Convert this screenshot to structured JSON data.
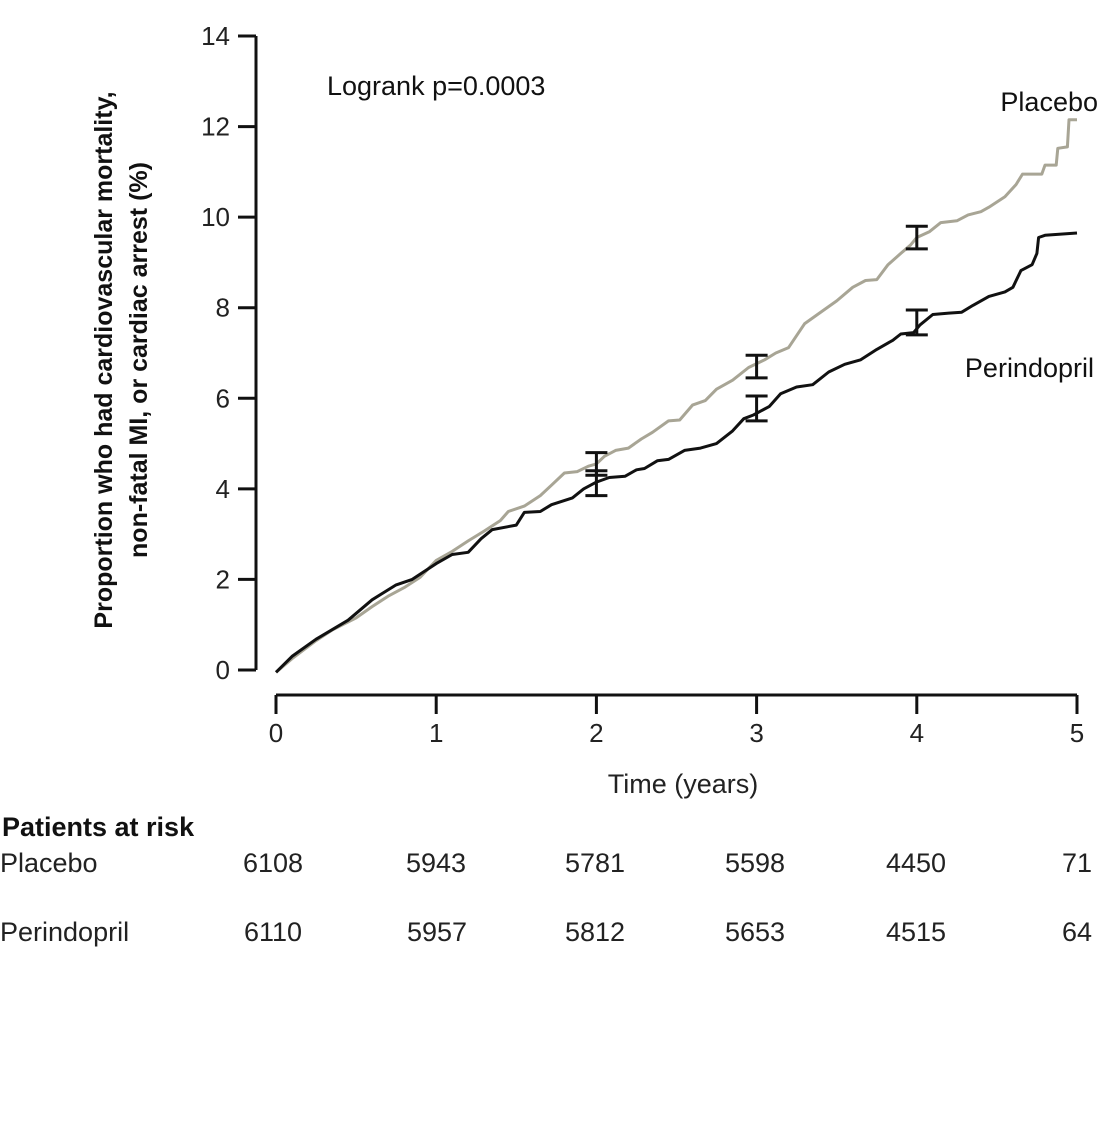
{
  "chart_data": {
    "type": "line",
    "subtype": "kaplan-meier-cumulative-incidence",
    "title": "",
    "xlabel": "Time (years)",
    "ylabel_lines": [
      "Proportion who had cardiovascular mortality,",
      "non-fatal MI, or cardiac arrest (%)"
    ],
    "xlim": [
      0,
      5
    ],
    "ylim": [
      0,
      14
    ],
    "xticks": [
      0,
      1,
      2,
      3,
      4,
      5
    ],
    "yticks": [
      0,
      2,
      4,
      6,
      8,
      10,
      12,
      14
    ],
    "grid": false,
    "annotation": "Logrank p=0.0003",
    "series": [
      {
        "name": "Placebo",
        "color": "#a8a595",
        "points": [
          [
            0,
            -0.05
          ],
          [
            0.1,
            0.25
          ],
          [
            0.25,
            0.65
          ],
          [
            0.35,
            0.88
          ],
          [
            0.5,
            1.15
          ],
          [
            0.6,
            1.4
          ],
          [
            0.7,
            1.63
          ],
          [
            0.8,
            1.82
          ],
          [
            0.9,
            2.05
          ],
          [
            1.0,
            2.42
          ],
          [
            1.1,
            2.62
          ],
          [
            1.2,
            2.85
          ],
          [
            1.3,
            3.07
          ],
          [
            1.4,
            3.3
          ],
          [
            1.45,
            3.5
          ],
          [
            1.55,
            3.62
          ],
          [
            1.65,
            3.85
          ],
          [
            1.72,
            4.08
          ],
          [
            1.8,
            4.35
          ],
          [
            1.88,
            4.38
          ],
          [
            1.95,
            4.5
          ],
          [
            2.0,
            4.55
          ],
          [
            2.05,
            4.72
          ],
          [
            2.12,
            4.85
          ],
          [
            2.2,
            4.9
          ],
          [
            2.28,
            5.1
          ],
          [
            2.35,
            5.25
          ],
          [
            2.45,
            5.5
          ],
          [
            2.52,
            5.52
          ],
          [
            2.6,
            5.85
          ],
          [
            2.68,
            5.95
          ],
          [
            2.75,
            6.2
          ],
          [
            2.85,
            6.4
          ],
          [
            2.95,
            6.68
          ],
          [
            3.05,
            6.85
          ],
          [
            3.12,
            7.0
          ],
          [
            3.2,
            7.12
          ],
          [
            3.3,
            7.65
          ],
          [
            3.38,
            7.85
          ],
          [
            3.5,
            8.15
          ],
          [
            3.6,
            8.45
          ],
          [
            3.68,
            8.6
          ],
          [
            3.75,
            8.62
          ],
          [
            3.82,
            8.95
          ],
          [
            3.9,
            9.2
          ],
          [
            3.96,
            9.38
          ],
          [
            4.0,
            9.55
          ],
          [
            4.08,
            9.68
          ],
          [
            4.15,
            9.88
          ],
          [
            4.25,
            9.92
          ],
          [
            4.32,
            10.05
          ],
          [
            4.4,
            10.12
          ],
          [
            4.45,
            10.22
          ],
          [
            4.55,
            10.45
          ],
          [
            4.62,
            10.72
          ],
          [
            4.66,
            10.95
          ],
          [
            4.78,
            10.95
          ],
          [
            4.8,
            11.15
          ],
          [
            4.87,
            11.15
          ],
          [
            4.88,
            11.52
          ],
          [
            4.94,
            11.55
          ],
          [
            4.95,
            12.15
          ],
          [
            5.0,
            12.15
          ]
        ],
        "ci": {
          "x": [
            2,
            3,
            4
          ],
          "lower": [
            4.3,
            6.45,
            9.3
          ],
          "upper": [
            4.8,
            6.95,
            9.8
          ]
        }
      },
      {
        "name": "Perindopril",
        "color": "#111111",
        "points": [
          [
            0,
            -0.05
          ],
          [
            0.1,
            0.3
          ],
          [
            0.25,
            0.68
          ],
          [
            0.45,
            1.1
          ],
          [
            0.6,
            1.55
          ],
          [
            0.75,
            1.88
          ],
          [
            0.85,
            2.0
          ],
          [
            1.0,
            2.35
          ],
          [
            1.1,
            2.55
          ],
          [
            1.2,
            2.6
          ],
          [
            1.28,
            2.9
          ],
          [
            1.35,
            3.1
          ],
          [
            1.5,
            3.2
          ],
          [
            1.55,
            3.48
          ],
          [
            1.65,
            3.5
          ],
          [
            1.72,
            3.65
          ],
          [
            1.85,
            3.8
          ],
          [
            1.92,
            4.0
          ],
          [
            2.0,
            4.15
          ],
          [
            2.08,
            4.25
          ],
          [
            2.18,
            4.28
          ],
          [
            2.25,
            4.42
          ],
          [
            2.3,
            4.45
          ],
          [
            2.38,
            4.62
          ],
          [
            2.45,
            4.65
          ],
          [
            2.55,
            4.85
          ],
          [
            2.65,
            4.9
          ],
          [
            2.75,
            5.0
          ],
          [
            2.85,
            5.28
          ],
          [
            2.92,
            5.55
          ],
          [
            2.98,
            5.63
          ],
          [
            3.08,
            5.82
          ],
          [
            3.15,
            6.1
          ],
          [
            3.25,
            6.25
          ],
          [
            3.35,
            6.3
          ],
          [
            3.45,
            6.58
          ],
          [
            3.55,
            6.75
          ],
          [
            3.65,
            6.85
          ],
          [
            3.75,
            7.08
          ],
          [
            3.85,
            7.28
          ],
          [
            3.9,
            7.42
          ],
          [
            3.98,
            7.45
          ],
          [
            4.02,
            7.62
          ],
          [
            4.1,
            7.85
          ],
          [
            4.2,
            7.88
          ],
          [
            4.28,
            7.9
          ],
          [
            4.35,
            8.05
          ],
          [
            4.45,
            8.25
          ],
          [
            4.55,
            8.35
          ],
          [
            4.6,
            8.45
          ],
          [
            4.65,
            8.82
          ],
          [
            4.72,
            8.95
          ],
          [
            4.75,
            9.2
          ],
          [
            4.76,
            9.55
          ],
          [
            4.8,
            9.6
          ],
          [
            5.0,
            9.65
          ]
        ],
        "ci": {
          "x": [
            2,
            3,
            4
          ],
          "lower": [
            3.85,
            5.5,
            7.4
          ],
          "upper": [
            4.4,
            6.05,
            7.95
          ]
        }
      }
    ]
  },
  "risk_table": {
    "title": "Patients at risk",
    "timepoints": [
      0,
      1,
      2,
      3,
      4,
      5
    ],
    "rows": [
      {
        "label": "Placebo",
        "values": [
          "6108",
          "5943",
          "5781",
          "5598",
          "4450",
          "71"
        ]
      },
      {
        "label": "Perindopril",
        "values": [
          "6110",
          "5957",
          "5812",
          "5653",
          "4515",
          "64"
        ]
      }
    ]
  }
}
